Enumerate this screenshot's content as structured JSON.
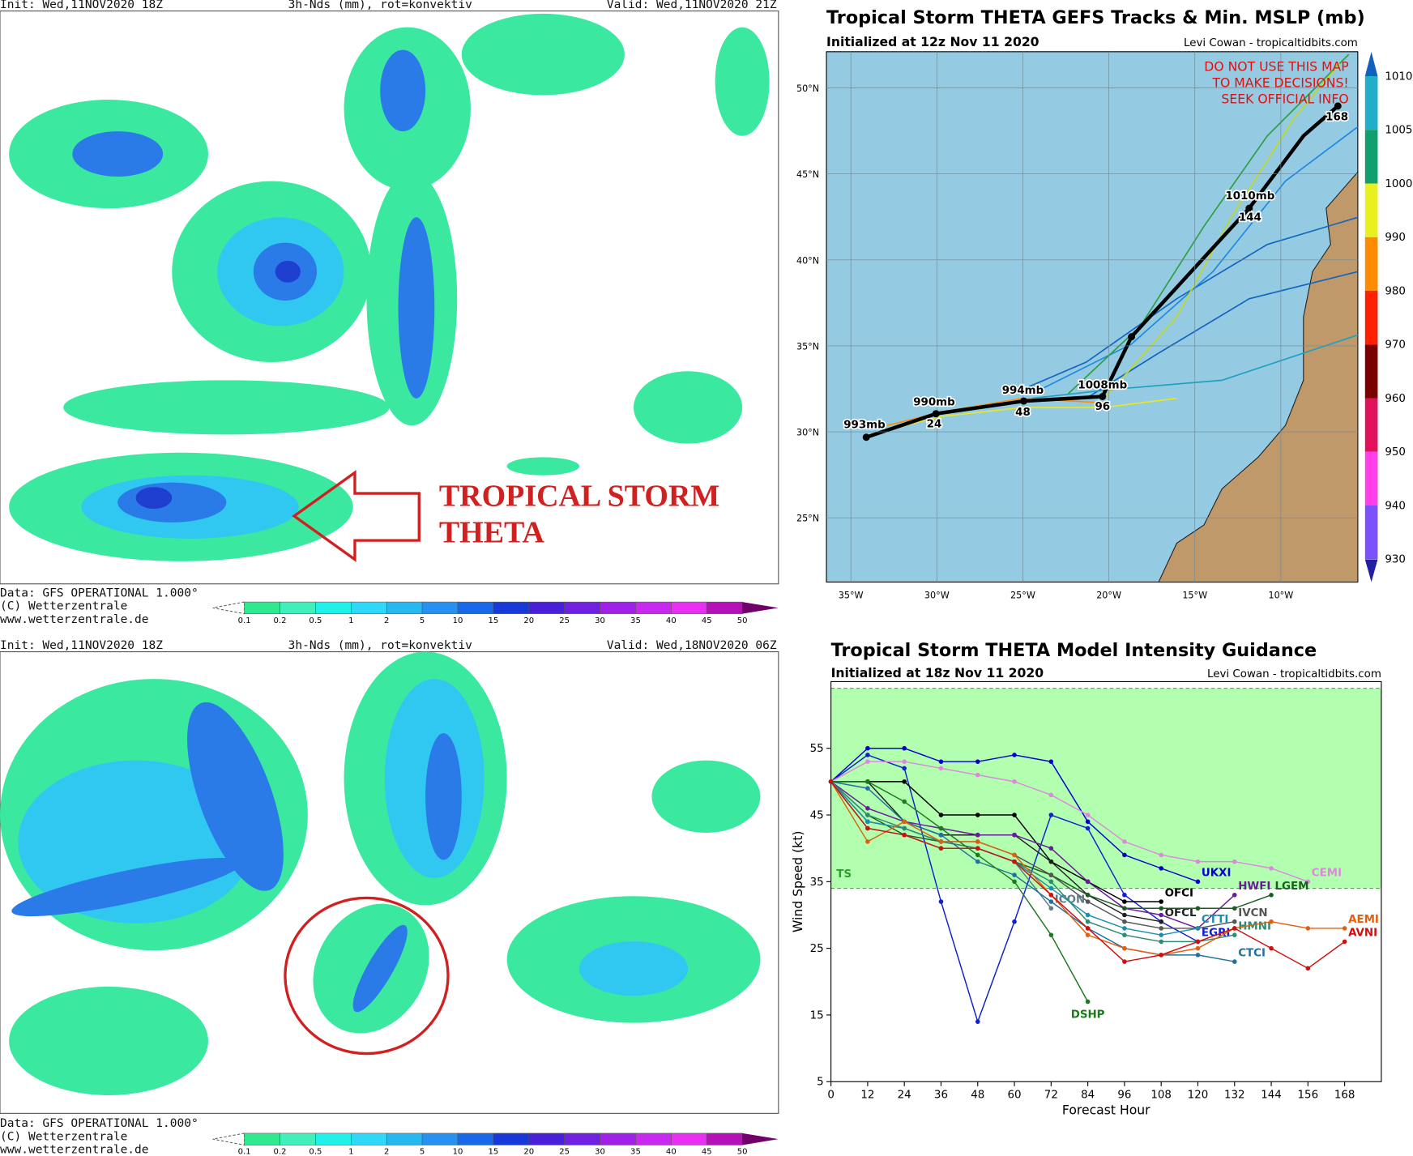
{
  "maps": [
    {
      "init": "Init: Wed,11NOV2020 18Z",
      "field": "3h-Nds (mm), rot=konvektiv",
      "valid": "Valid: Wed,11NOV2020 21Z",
      "footer": [
        "Data: GFS OPERATIONAL 1.000°",
        "(C) Wetterzentrale",
        "www.wetterzentrale.de"
      ]
    },
    {
      "init": "Init: Wed,11NOV2020 18Z",
      "field": "3h-Nds (mm), rot=konvektiv",
      "valid": "Valid: Wed,18NOV2020 06Z",
      "footer": [
        "Data: GFS OPERATIONAL 1.000°",
        "(C) Wetterzentrale",
        "www.wetterzentrale.de"
      ]
    }
  ],
  "annotation": [
    "TROPICAL STORM",
    "THETA"
  ],
  "precip_scale": {
    "ticks": [
      0.1,
      0.2,
      0.5,
      1,
      2,
      5,
      10,
      15,
      20,
      25,
      30,
      35,
      40,
      45,
      50
    ],
    "colors": [
      "#30e890",
      "#40f0b8",
      "#20f0e8",
      "#30d8f8",
      "#28b8f0",
      "#2890f0",
      "#1868e8",
      "#1838d8",
      "#4820d8",
      "#7020e0",
      "#a020e8",
      "#c828f0",
      "#e830f0",
      "#b810b8"
    ]
  },
  "track_map": {
    "title": "Tropical Storm THETA GEFS Tracks & Min. MSLP (mb)",
    "subtitle": "Initialized at 12z Nov 11 2020",
    "credit": "Levi Cowan - tropicaltidbits.com",
    "disclaimer": [
      "DO NOT USE THIS MAP",
      "TO MAKE DECISIONS!",
      "SEEK OFFICIAL INFO"
    ],
    "lat_labels": [
      "50°N",
      "45°N",
      "40°N",
      "35°N",
      "30°N",
      "25°N"
    ],
    "lon_labels": [
      "35°W",
      "30°W",
      "25°W",
      "20°W",
      "15°W",
      "10°W"
    ],
    "storm_labels": [
      "993mb",
      "990mb",
      "24",
      "994mb",
      "48",
      "1008mb",
      "96",
      "1010mb",
      "144",
      "168"
    ],
    "pressure_scale": {
      "ticks": [
        1010,
        1005,
        1000,
        990,
        980,
        970,
        960,
        950,
        940,
        930
      ],
      "colors": [
        "#20aec8",
        "#10a070",
        "#e8f020",
        "#ff8c00",
        "#ff2000",
        "#7a0000",
        "#e0105a",
        "#ff40e8",
        "#7a50ff"
      ]
    }
  },
  "chart_data": {
    "type": "line",
    "title": "Tropical Storm THETA Model Intensity Guidance",
    "subtitle": "Initialized at 18z Nov 11 2020",
    "credit": "Levi Cowan - tropicaltidbits.com",
    "x_label": "Forecast Hour",
    "y_label": "Wind Speed (kt)",
    "x": [
      0,
      12,
      24,
      36,
      48,
      60,
      72,
      84,
      96,
      108,
      120,
      132,
      144,
      156,
      168
    ],
    "xlim": [
      0,
      180
    ],
    "ylim": [
      5,
      65
    ],
    "xticks": [
      0,
      12,
      24,
      36,
      48,
      60,
      72,
      84,
      96,
      108,
      120,
      132,
      144,
      156,
      168
    ],
    "yticks": [
      5,
      15,
      25,
      35,
      45,
      55
    ],
    "band": {
      "label": "TS",
      "from": 34,
      "to": 64,
      "color": "#b3ffb0"
    },
    "series": [
      {
        "name": "UKXI",
        "color": "#0000cc",
        "values": [
          50,
          55,
          55,
          53,
          53,
          54,
          53,
          44,
          39,
          37,
          35,
          null,
          null,
          null,
          null
        ]
      },
      {
        "name": "EGRI",
        "color": "#1020d0",
        "values": [
          50,
          54,
          52,
          32,
          14,
          29,
          45,
          43,
          33,
          29,
          26,
          null,
          null,
          null,
          null
        ]
      },
      {
        "name": "CEMI",
        "color": "#dd88dd",
        "values": [
          50,
          53,
          53,
          52,
          51,
          50,
          48,
          45,
          41,
          39,
          38,
          38,
          37,
          35,
          null
        ]
      },
      {
        "name": "OFCI",
        "color": "#000000",
        "values": [
          50,
          50,
          50,
          45,
          45,
          45,
          38,
          35,
          32,
          32,
          null,
          null,
          null,
          null,
          null
        ]
      },
      {
        "name": "OFCL",
        "color": "#202020",
        "values": [
          50,
          50,
          44,
          42,
          42,
          42,
          38,
          33,
          30,
          29,
          null,
          null,
          null,
          null,
          null
        ]
      },
      {
        "name": "HWFI",
        "color": "#6a1b9a",
        "values": [
          50,
          46,
          44,
          43,
          42,
          42,
          40,
          35,
          31,
          30,
          28,
          33,
          null,
          null,
          null
        ]
      },
      {
        "name": "LGEM",
        "color": "#1b5e20",
        "values": [
          50,
          45,
          42,
          41,
          40,
          38,
          36,
          33,
          31,
          31,
          31,
          31,
          33,
          null,
          null
        ]
      },
      {
        "name": "IVCN",
        "color": "#555555",
        "values": [
          50,
          44,
          43,
          41,
          41,
          39,
          36,
          32,
          29,
          28,
          28,
          29,
          null,
          null,
          null
        ]
      },
      {
        "name": "ICON",
        "color": "#607d8b",
        "values": [
          50,
          43,
          42,
          40,
          40,
          38,
          31,
          null,
          null,
          null,
          null,
          null,
          null,
          null,
          null
        ]
      },
      {
        "name": "CTTI",
        "color": "#1a8fb0",
        "values": [
          50,
          44,
          43,
          41,
          40,
          38,
          34,
          30,
          28,
          27,
          28,
          null,
          null,
          null,
          null
        ]
      },
      {
        "name": "HMNI",
        "color": "#2e8b74",
        "values": [
          50,
          45,
          43,
          41,
          40,
          38,
          35,
          29,
          27,
          26,
          26,
          27,
          null,
          null,
          null
        ]
      },
      {
        "name": "CTCI",
        "color": "#2070a0",
        "values": [
          50,
          49,
          44,
          42,
          38,
          36,
          32,
          28,
          25,
          24,
          24,
          23,
          null,
          null,
          null
        ]
      },
      {
        "name": "DSHP",
        "color": "#1b7a1b",
        "values": [
          50,
          50,
          47,
          43,
          39,
          35,
          27,
          17,
          null,
          null,
          null,
          null,
          null,
          null,
          null
        ]
      },
      {
        "name": "AEMI",
        "color": "#e06010",
        "values": [
          50,
          41,
          44,
          41,
          41,
          39,
          33,
          27,
          25,
          24,
          25,
          28,
          29,
          28,
          28
        ]
      },
      {
        "name": "AVNI",
        "color": "#d01010",
        "values": [
          50,
          43,
          42,
          40,
          40,
          38,
          33,
          28,
          23,
          24,
          26,
          28,
          25,
          22,
          26
        ]
      }
    ]
  }
}
